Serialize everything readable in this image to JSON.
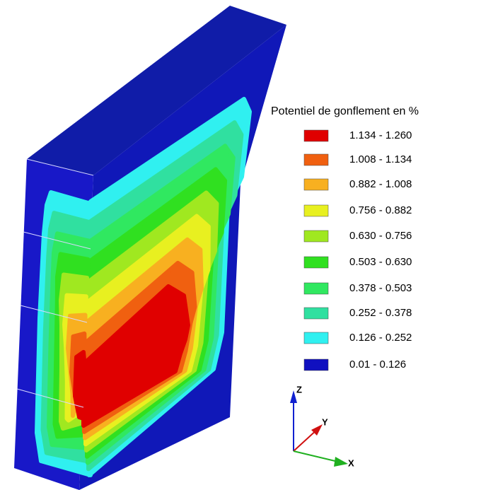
{
  "legend": {
    "title": "Potentiel de gonflement en %",
    "items": [
      {
        "label": "1.134 - 1.260",
        "color": "#e00000"
      },
      {
        "label": "1.008 - 1.134",
        "color": "#f06010"
      },
      {
        "label": "0.882 - 1.008",
        "color": "#f8b020"
      },
      {
        "label": "0.756 - 0.882",
        "color": "#e8f020"
      },
      {
        "label": "0.630 - 0.756",
        "color": "#a0e820"
      },
      {
        "label": "0.503 - 0.630",
        "color": "#30e020"
      },
      {
        "label": "0.378 - 0.503",
        "color": "#30e860"
      },
      {
        "label": "0.252 - 0.378",
        "color": "#30e0a0"
      },
      {
        "label": "0.126 - 0.252",
        "color": "#30f0f0"
      },
      {
        "label": "0.01   - 0.126",
        "color": "#1010c0"
      }
    ]
  },
  "axes": {
    "z": "Z",
    "y": "Y",
    "x": "X"
  }
}
